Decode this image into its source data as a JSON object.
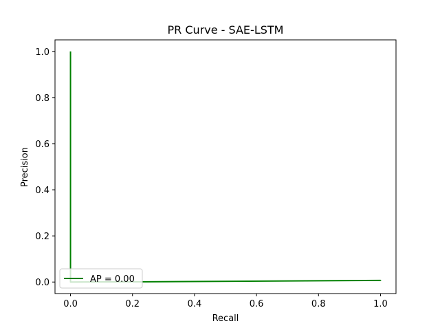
{
  "chart_data": {
    "type": "line",
    "title": "PR Curve - SAE-LSTM",
    "xlabel": "Recall",
    "ylabel": "Precision",
    "xlim": [
      -0.05,
      1.05
    ],
    "ylim": [
      -0.05,
      1.05
    ],
    "xticks": [
      0.0,
      0.2,
      0.4,
      0.6,
      0.8,
      1.0
    ],
    "xtick_labels": [
      "0.0",
      "0.2",
      "0.4",
      "0.6",
      "0.8",
      "1.0"
    ],
    "yticks": [
      0.0,
      0.2,
      0.4,
      0.6,
      0.8,
      1.0
    ],
    "ytick_labels": [
      "0.0",
      "0.2",
      "0.4",
      "0.6",
      "0.8",
      "1.0"
    ],
    "grid": false,
    "legend_position": "lower left",
    "series": [
      {
        "name": "AP = 0.00",
        "color": "#008000",
        "x": [
          0.0,
          0.0,
          0.0,
          0.25,
          1.0,
          1.0
        ],
        "y": [
          1.0,
          0.05,
          0.0,
          0.001,
          0.007,
          0.005
        ]
      }
    ]
  }
}
